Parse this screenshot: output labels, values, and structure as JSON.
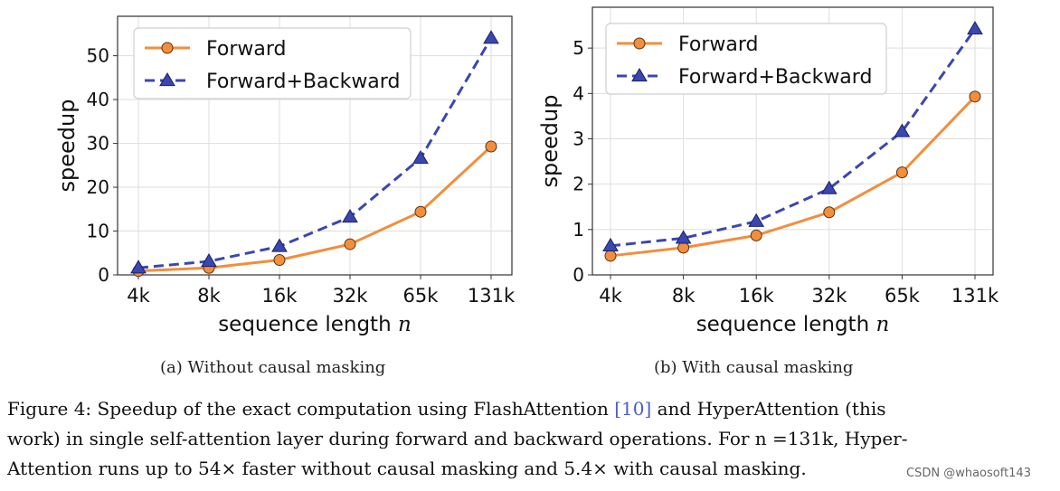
{
  "chart_data": [
    {
      "type": "line",
      "categories": [
        "4k",
        "8k",
        "16k",
        "32k",
        "65k",
        "131k"
      ],
      "series": [
        {
          "name": "Forward",
          "values": [
            0.9,
            1.6,
            3.4,
            7.0,
            14.4,
            29.3
          ],
          "color": "#f28e3c",
          "marker": "circle",
          "dash": "solid"
        },
        {
          "name": "Forward+Backward",
          "values": [
            1.6,
            3.1,
            6.5,
            13.2,
            26.6,
            54.0
          ],
          "color": "#3a47b0",
          "marker": "triangle",
          "dash": "dashed"
        }
      ],
      "xlabel": "sequence length",
      "xlabel_var": "n",
      "ylabel": "speedup",
      "ylim": [
        0,
        59
      ],
      "yticks": [
        0,
        10,
        20,
        30,
        40,
        50
      ],
      "legend_position": "top-left",
      "grid": true,
      "subcaption": "(a) Without causal masking"
    },
    {
      "type": "line",
      "categories": [
        "4k",
        "8k",
        "16k",
        "32k",
        "65k",
        "131k"
      ],
      "series": [
        {
          "name": "Forward",
          "values": [
            0.42,
            0.6,
            0.87,
            1.38,
            2.26,
            3.93
          ],
          "color": "#f28e3c",
          "marker": "circle",
          "dash": "solid"
        },
        {
          "name": "Forward+Backward",
          "values": [
            0.64,
            0.81,
            1.18,
            1.9,
            3.16,
            5.42
          ],
          "color": "#3a47b0",
          "marker": "triangle",
          "dash": "dashed"
        }
      ],
      "xlabel": "sequence length",
      "xlabel_var": "n",
      "ylabel": "speedup",
      "ylim": [
        0,
        5.9
      ],
      "yticks": [
        0,
        1,
        2,
        3,
        4,
        5
      ],
      "legend_position": "top-left",
      "grid": true,
      "subcaption": "(b) With causal masking"
    }
  ],
  "caption": {
    "line1_pre": "Figure 4: Speedup of the exact computation using FlashAttention ",
    "line1_cite": "[10]",
    "line1_post": " and HyperAttention (this",
    "line2": "work) in single self-attention layer during forward and backward operations. For n =131k, Hyper-",
    "line3": "Attention runs up to 54× faster without causal masking and 5.4× with causal masking."
  },
  "watermark": "CSDN @whaosoft143"
}
